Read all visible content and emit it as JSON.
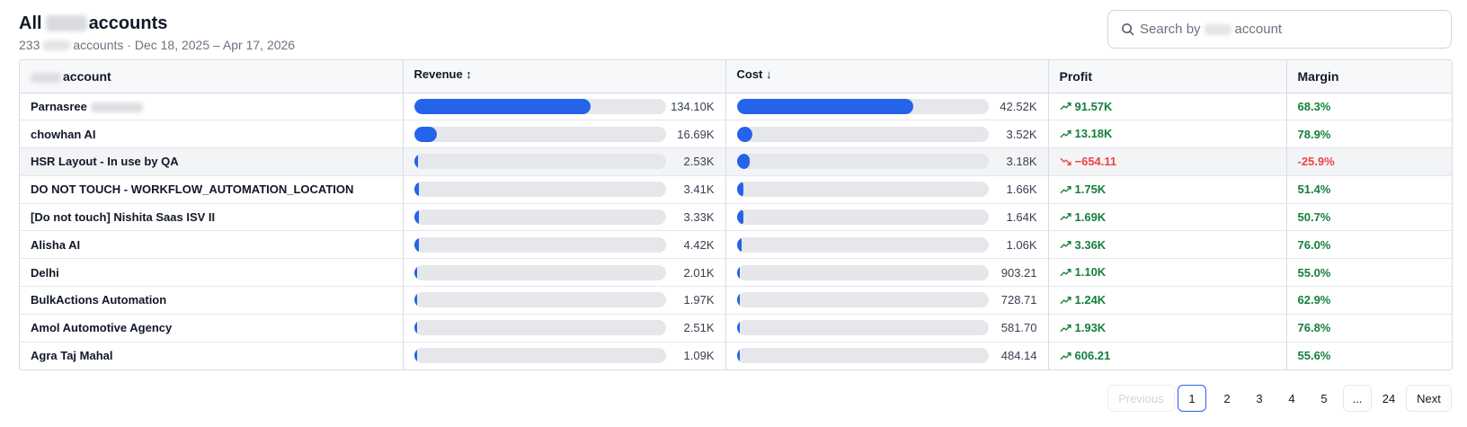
{
  "header": {
    "title_prefix": "All",
    "title_suffix": "accounts",
    "subtitle_count": "233",
    "subtitle_rest": "accounts · Dec 18, 2025 – Apr 17, 2026"
  },
  "search": {
    "placeholder_prefix": "Search by",
    "placeholder_suffix": "account"
  },
  "table": {
    "columns": {
      "account": "account",
      "revenue": "Revenue ↕",
      "cost": "Cost ↓",
      "profit": "Profit",
      "margin": "Margin"
    },
    "rows": [
      {
        "name": "Parnasree",
        "redacted": true,
        "revenue": "134.10K",
        "revenue_frac": 0.7,
        "cost": "42.52K",
        "cost_frac": 0.7,
        "profit": "91.57K",
        "margin": "68.3%",
        "positive": true
      },
      {
        "name": "chowhan AI",
        "revenue": "16.69K",
        "revenue_frac": 0.09,
        "cost": "3.52K",
        "cost_frac": 0.06,
        "profit": "13.18K",
        "margin": "78.9%",
        "positive": true
      },
      {
        "name": "HSR Layout - In use by QA",
        "revenue": "2.53K",
        "revenue_frac": 0.013,
        "cost": "3.18K",
        "cost_frac": 0.05,
        "profit": "−654.11",
        "margin": "-25.9%",
        "positive": false,
        "highlight": true
      },
      {
        "name": "DO NOT TOUCH - WORKFLOW_AUTOMATION_LOCATION",
        "revenue": "3.41K",
        "revenue_frac": 0.018,
        "cost": "1.66K",
        "cost_frac": 0.026,
        "profit": "1.75K",
        "margin": "51.4%",
        "positive": true
      },
      {
        "name": "[Do not touch] Nishita Saas ISV II",
        "revenue": "3.33K",
        "revenue_frac": 0.018,
        "cost": "1.64K",
        "cost_frac": 0.026,
        "profit": "1.69K",
        "margin": "50.7%",
        "positive": true
      },
      {
        "name": "Alisha AI",
        "revenue": "4.42K",
        "revenue_frac": 0.018,
        "cost": "1.06K",
        "cost_frac": 0.018,
        "profit": "3.36K",
        "margin": "76.0%",
        "positive": true
      },
      {
        "name": "Delhi",
        "revenue": "2.01K",
        "revenue_frac": 0.01,
        "cost": "903.21",
        "cost_frac": 0.01,
        "profit": "1.10K",
        "margin": "55.0%",
        "positive": true
      },
      {
        "name": "BulkActions Automation",
        "revenue": "1.97K",
        "revenue_frac": 0.01,
        "cost": "728.71",
        "cost_frac": 0.01,
        "profit": "1.24K",
        "margin": "62.9%",
        "positive": true
      },
      {
        "name": "Amol Automotive Agency",
        "revenue": "2.51K",
        "revenue_frac": 0.01,
        "cost": "581.70",
        "cost_frac": 0.01,
        "profit": "1.93K",
        "margin": "76.8%",
        "positive": true
      },
      {
        "name": "Agra Taj Mahal",
        "revenue": "1.09K",
        "revenue_frac": 0.01,
        "cost": "484.14",
        "cost_frac": 0.01,
        "profit": "606.21",
        "margin": "55.6%",
        "positive": true
      }
    ]
  },
  "pagination": {
    "previous": "Previous",
    "pages": [
      "1",
      "2",
      "3",
      "4",
      "5"
    ],
    "ellipsis": "...",
    "last": "24",
    "next": "Next",
    "current": "1"
  },
  "colors": {
    "accent": "#2563eb",
    "positive": "#15803d",
    "negative": "#ef4444"
  }
}
